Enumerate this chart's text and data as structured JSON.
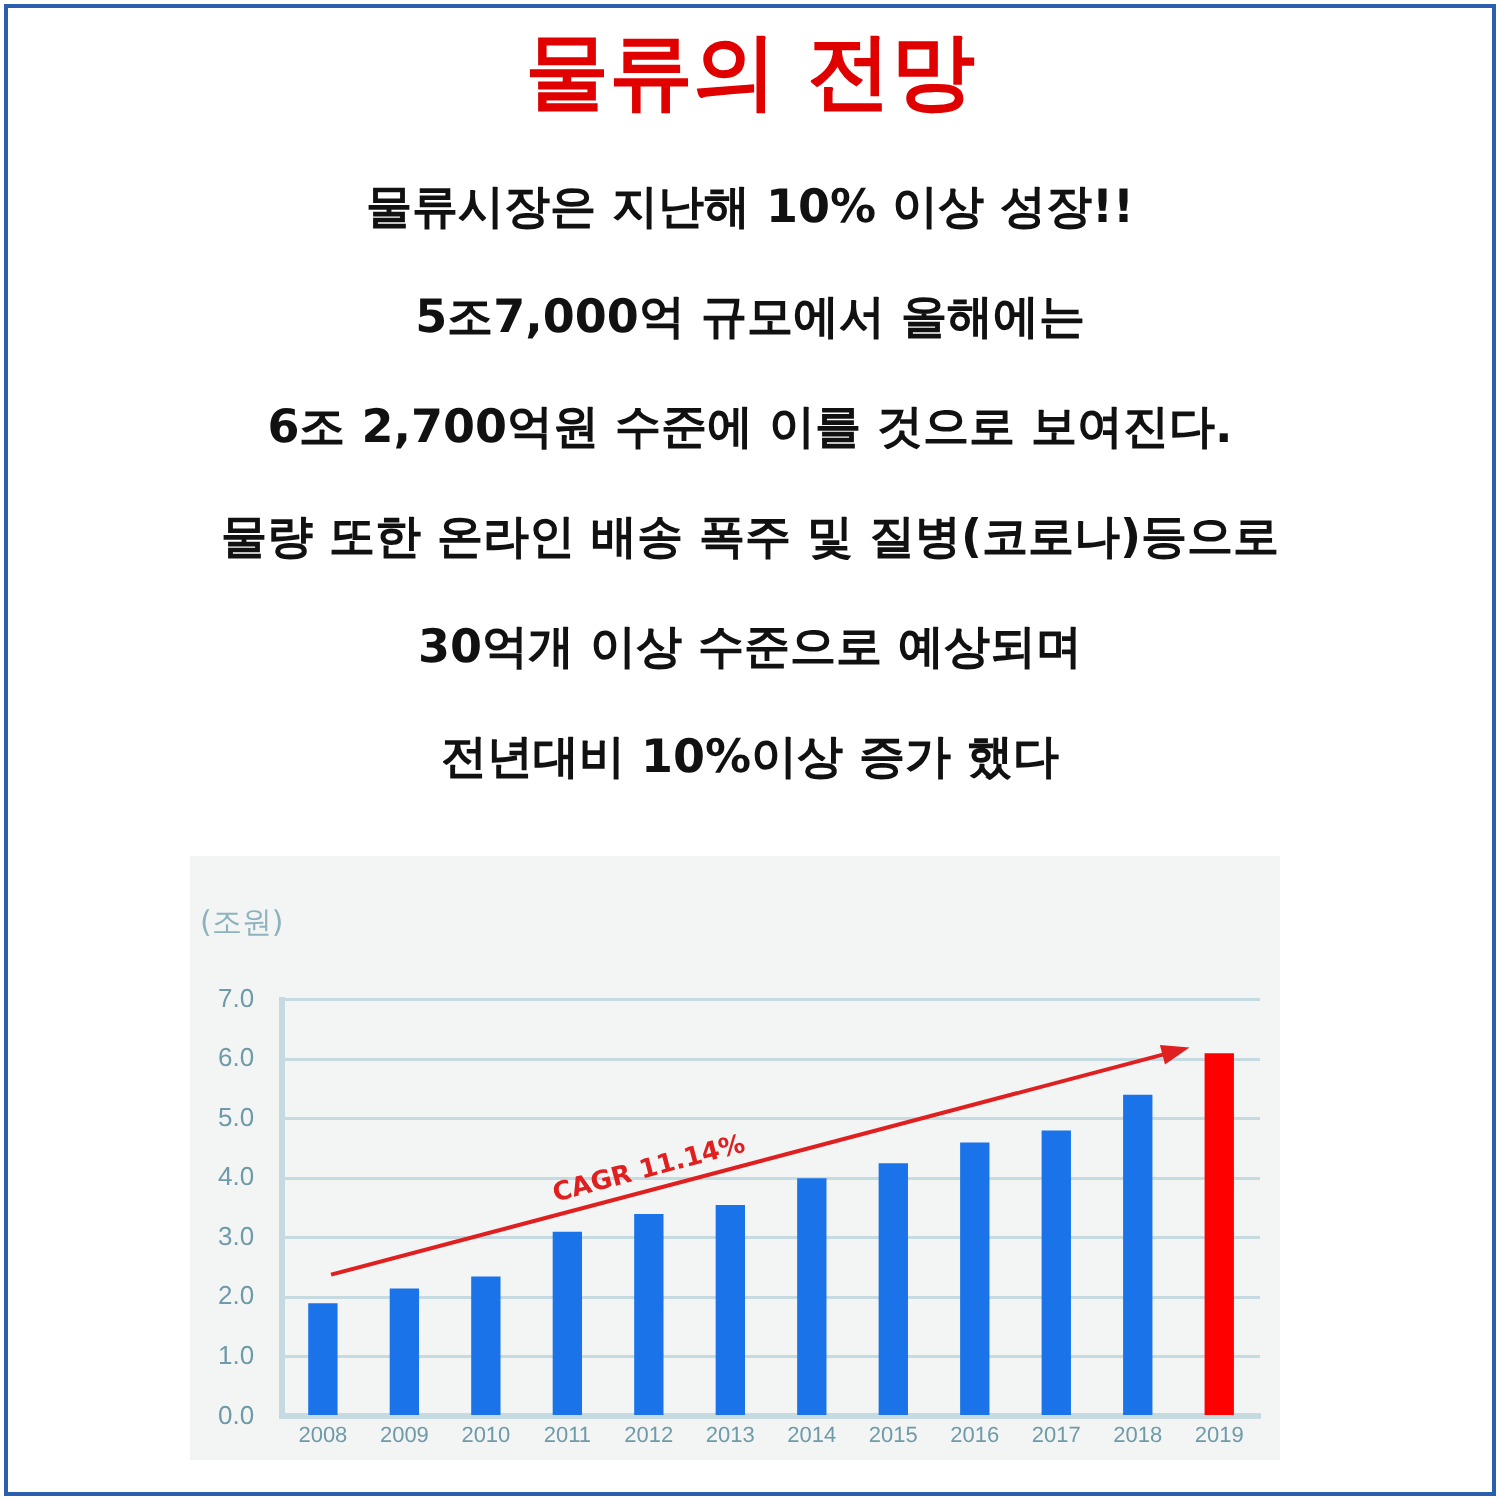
{
  "chart_data": {
    "type": "bar",
    "title": "물류의 전망",
    "annotations": [
      "물류시장은 지난해 10% 이상 성장!!",
      "5조7,000억 규모에서 올해에는",
      "6조 2,700억원 수준에 이를 것으로 보여진다.",
      "물량 또한 온라인 배송 폭주 및 질병(코로나)등으로",
      "30억개 이상 수준으로 예상되며",
      "전년대비 10%이상 증가 했다",
      "CAGR 11.14%"
    ],
    "ylabel": "(조원)",
    "categories": [
      "2008",
      "2009",
      "2010",
      "2011",
      "2012",
      "2013",
      "2014",
      "2015",
      "2016",
      "2017",
      "2018",
      "2019"
    ],
    "values": [
      1.9,
      2.15,
      2.35,
      3.1,
      3.4,
      3.55,
      4.0,
      4.25,
      4.6,
      4.8,
      5.4,
      6.1
    ],
    "colors": [
      "#1a73e8",
      "#1a73e8",
      "#1a73e8",
      "#1a73e8",
      "#1a73e8",
      "#1a73e8",
      "#1a73e8",
      "#1a73e8",
      "#1a73e8",
      "#1a73e8",
      "#1a73e8",
      "#ff0000"
    ],
    "ylim": [
      0,
      7.0
    ],
    "yticks": [
      {
        "value": 0,
        "label": "0.0"
      },
      {
        "value": 1,
        "label": "1.0"
      },
      {
        "value": 2,
        "label": "2.0"
      },
      {
        "value": 3,
        "label": "3.0"
      },
      {
        "value": 4,
        "label": "4.0"
      },
      {
        "value": 5,
        "label": "5.0"
      },
      {
        "value": 6,
        "label": "6.0"
      },
      {
        "value": 7,
        "label": "7.0"
      }
    ],
    "grid": "y",
    "legend": false
  }
}
